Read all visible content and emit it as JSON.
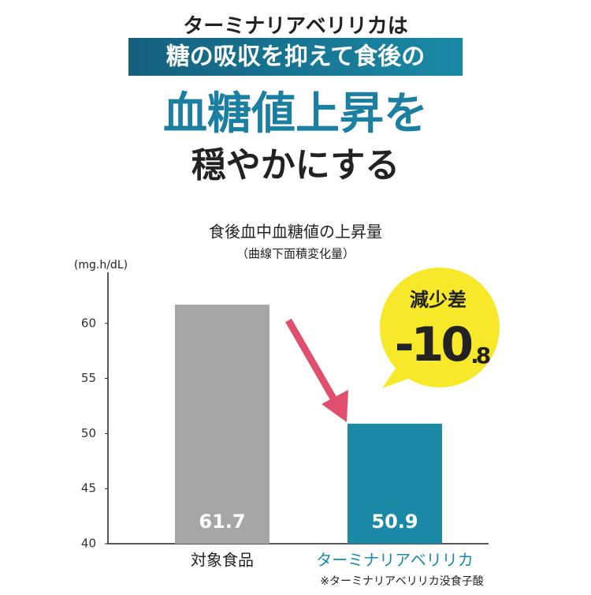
{
  "header": {
    "line1": "ターミナリアベリリカは",
    "line2": "糖の吸収を抑えて食後の",
    "line3": "血糖値上昇を",
    "line4": "穏やかにする"
  },
  "chart_data": {
    "type": "bar",
    "title": "食後血中血糖値の上昇量",
    "subtitle": "（曲線下面積変化量）",
    "y_label": "(mg.h/dL)",
    "categories": [
      "対象食品",
      "ターミナリアベリリカ"
    ],
    "values": [
      61.7,
      50.9
    ],
    "colors": [
      "#a6a6a6",
      "#1a8aa6"
    ],
    "label_colors": [
      "#222222",
      "#1a8aa6"
    ],
    "ylim": [
      40,
      65
    ],
    "yticks": [
      40,
      45,
      50,
      55,
      60
    ],
    "annotation": {
      "label": "減少差",
      "value": -10.8
    },
    "footnote": "※ターミナリアベリリカ没食子酸"
  }
}
